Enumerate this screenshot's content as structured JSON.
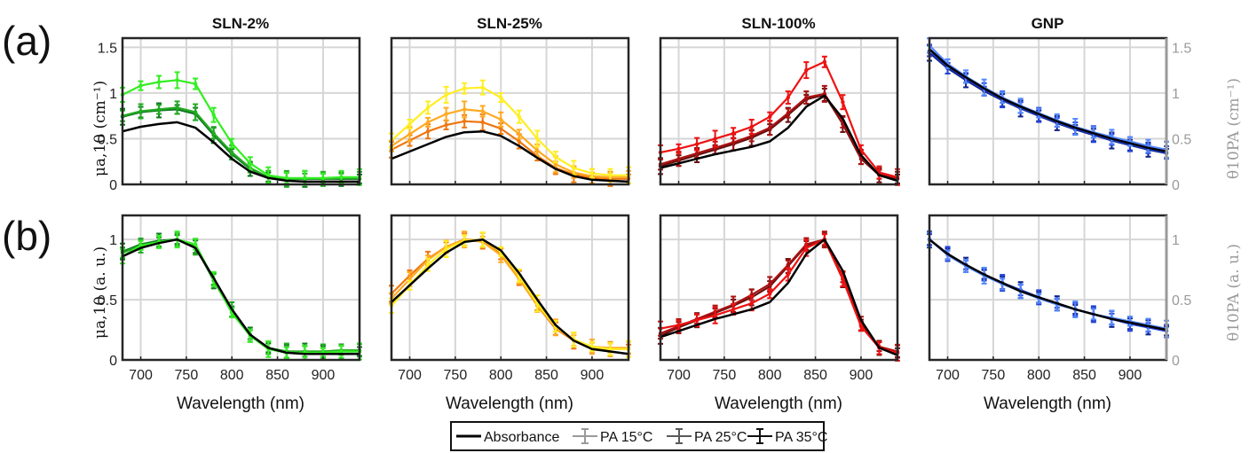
{
  "figure": {
    "row_labels": [
      "(a)",
      "(b)"
    ],
    "column_titles": [
      "SLN-2%",
      "SLN-25%",
      "SLN-100%",
      "GNP"
    ],
    "xlabel": "Wavelength (nm)",
    "ylabel_left_a": "μa,10 (cm⁻¹)",
    "ylabel_left_b": "μa,10 (a. u.)",
    "ylabel_right_a": "θ10PA (cm⁻¹)",
    "ylabel_right_b": "θ10PA (a. u.)",
    "legend": [
      "Absorbance",
      "PA 15°C",
      "PA 25°C",
      "PA 35°C"
    ]
  },
  "chart_data": [
    {
      "type": "line",
      "title": "SLN-2%",
      "row": "(a)",
      "xlabel": "",
      "ylabel": "μa,10 (cm⁻¹)",
      "xlim": [
        680,
        940
      ],
      "ylim": [
        0,
        1.6
      ],
      "x": [
        680,
        700,
        720,
        740,
        760,
        780,
        800,
        820,
        840,
        860,
        880,
        900,
        920,
        940
      ],
      "colors": {
        "Absorbance": "#000000",
        "PA 15°C": "#33ee22",
        "PA 25°C": "#22aa22",
        "PA 35°C": "#117722"
      },
      "series": [
        {
          "name": "Absorbance",
          "values": [
            0.58,
            0.63,
            0.66,
            0.68,
            0.62,
            0.46,
            0.28,
            0.14,
            0.07,
            0.04,
            0.03,
            0.03,
            0.03,
            0.03
          ]
        },
        {
          "name": "PA 15°C",
          "values": [
            0.98,
            1.08,
            1.12,
            1.14,
            1.1,
            0.76,
            0.45,
            0.23,
            0.1,
            0.07,
            0.07,
            0.07,
            0.08,
            0.08
          ]
        },
        {
          "name": "PA 25°C",
          "values": [
            0.75,
            0.8,
            0.82,
            0.84,
            0.79,
            0.56,
            0.35,
            0.18,
            0.08,
            0.06,
            0.06,
            0.06,
            0.07,
            0.07
          ]
        },
        {
          "name": "PA 35°C",
          "values": [
            0.74,
            0.79,
            0.81,
            0.82,
            0.77,
            0.54,
            0.33,
            0.17,
            0.08,
            0.06,
            0.06,
            0.06,
            0.06,
            0.06
          ]
        }
      ]
    },
    {
      "type": "line",
      "title": "SLN-25%",
      "row": "(a)",
      "xlim": [
        680,
        940
      ],
      "ylim": [
        0,
        1.6
      ],
      "x": [
        680,
        700,
        720,
        740,
        760,
        780,
        800,
        820,
        840,
        860,
        880,
        900,
        920,
        940
      ],
      "colors": {
        "Absorbance": "#000000",
        "PA 15°C": "#ffee22",
        "PA 25°C": "#ffaa22",
        "PA 35°C": "#ee7711"
      },
      "series": [
        {
          "name": "Absorbance",
          "values": [
            0.28,
            0.36,
            0.44,
            0.52,
            0.57,
            0.58,
            0.53,
            0.42,
            0.29,
            0.17,
            0.09,
            0.05,
            0.04,
            0.03
          ]
        },
        {
          "name": "PA 15°C",
          "values": [
            0.48,
            0.66,
            0.84,
            0.98,
            1.05,
            1.06,
            0.95,
            0.74,
            0.5,
            0.3,
            0.18,
            0.12,
            0.1,
            0.1
          ]
        },
        {
          "name": "PA 25°C",
          "values": [
            0.42,
            0.55,
            0.68,
            0.77,
            0.82,
            0.8,
            0.71,
            0.55,
            0.37,
            0.22,
            0.13,
            0.09,
            0.08,
            0.08
          ]
        },
        {
          "name": "PA 35°C",
          "values": [
            0.38,
            0.48,
            0.58,
            0.65,
            0.69,
            0.68,
            0.61,
            0.47,
            0.31,
            0.18,
            0.11,
            0.07,
            0.06,
            0.06
          ]
        }
      ]
    },
    {
      "type": "line",
      "title": "SLN-100%",
      "row": "(a)",
      "xlim": [
        680,
        940
      ],
      "ylim": [
        0,
        1.6
      ],
      "x": [
        680,
        700,
        720,
        740,
        760,
        780,
        800,
        820,
        840,
        860,
        880,
        900,
        920,
        940
      ],
      "colors": {
        "Absorbance": "#000000",
        "PA 15°C": "#ee1111",
        "PA 25°C": "#aa1111",
        "PA 35°C": "#661111"
      },
      "series": [
        {
          "name": "Absorbance",
          "values": [
            0.18,
            0.23,
            0.28,
            0.33,
            0.37,
            0.41,
            0.47,
            0.62,
            0.85,
            0.97,
            0.72,
            0.32,
            0.1,
            0.04
          ]
        },
        {
          "name": "PA 15°C",
          "values": [
            0.35,
            0.39,
            0.44,
            0.5,
            0.56,
            0.63,
            0.74,
            0.95,
            1.25,
            1.34,
            0.9,
            0.38,
            0.13,
            0.08
          ]
        },
        {
          "name": "PA 25°C",
          "values": [
            0.22,
            0.28,
            0.34,
            0.4,
            0.46,
            0.53,
            0.62,
            0.78,
            0.95,
            0.99,
            0.68,
            0.3,
            0.11,
            0.07
          ]
        },
        {
          "name": "PA 35°C",
          "values": [
            0.2,
            0.26,
            0.32,
            0.38,
            0.44,
            0.51,
            0.6,
            0.76,
            0.93,
            0.98,
            0.66,
            0.28,
            0.1,
            0.06
          ]
        }
      ]
    },
    {
      "type": "line",
      "title": "GNP",
      "row": "(a)",
      "xlim": [
        680,
        940
      ],
      "ylim": [
        0,
        1.6
      ],
      "x": [
        680,
        700,
        720,
        740,
        760,
        780,
        800,
        820,
        840,
        860,
        880,
        900,
        920,
        940
      ],
      "colors": {
        "Absorbance": "#000000",
        "PA 15°C": "#5588ff",
        "PA 25°C": "#2244dd",
        "PA 35°C": "#112288"
      },
      "series": [
        {
          "name": "Absorbance",
          "values": [
            1.48,
            1.3,
            1.17,
            1.05,
            0.94,
            0.85,
            0.77,
            0.69,
            0.62,
            0.56,
            0.5,
            0.45,
            0.4,
            0.36
          ]
        },
        {
          "name": "PA 15°C",
          "values": [
            1.52,
            1.32,
            1.18,
            1.06,
            0.95,
            0.86,
            0.78,
            0.7,
            0.63,
            0.57,
            0.52,
            0.47,
            0.42,
            0.38
          ]
        },
        {
          "name": "PA 25°C",
          "values": [
            1.46,
            1.29,
            1.16,
            1.04,
            0.93,
            0.84,
            0.76,
            0.68,
            0.61,
            0.55,
            0.49,
            0.44,
            0.39,
            0.35
          ]
        },
        {
          "name": "PA 35°C",
          "values": [
            1.44,
            1.27,
            1.14,
            1.02,
            0.92,
            0.83,
            0.75,
            0.67,
            0.6,
            0.54,
            0.48,
            0.43,
            0.38,
            0.34
          ]
        }
      ]
    },
    {
      "type": "line",
      "title": "SLN-2%",
      "row": "(b)",
      "xlabel": "Wavelength (nm)",
      "ylabel": "μa,10 (a. u.)",
      "xlim": [
        680,
        940
      ],
      "ylim": [
        0,
        1.2
      ],
      "x": [
        680,
        700,
        720,
        740,
        760,
        780,
        800,
        820,
        840,
        860,
        880,
        900,
        920,
        940
      ],
      "colors": {
        "Absorbance": "#000000",
        "PA 15°C": "#33ee22",
        "PA 25°C": "#22aa22",
        "PA 35°C": "#117722"
      },
      "series": [
        {
          "name": "Absorbance",
          "values": [
            0.86,
            0.93,
            0.97,
            1.0,
            0.93,
            0.68,
            0.42,
            0.21,
            0.1,
            0.06,
            0.05,
            0.05,
            0.05,
            0.05
          ]
        },
        {
          "name": "PA 15°C",
          "values": [
            0.86,
            0.95,
            0.98,
            1.0,
            0.96,
            0.67,
            0.39,
            0.2,
            0.09,
            0.06,
            0.06,
            0.06,
            0.07,
            0.07
          ]
        },
        {
          "name": "PA 25°C",
          "values": [
            0.89,
            0.95,
            0.98,
            1.0,
            0.94,
            0.67,
            0.42,
            0.21,
            0.1,
            0.07,
            0.07,
            0.07,
            0.08,
            0.08
          ]
        },
        {
          "name": "PA 35°C",
          "values": [
            0.9,
            0.96,
            0.99,
            1.0,
            0.94,
            0.66,
            0.4,
            0.21,
            0.1,
            0.07,
            0.07,
            0.07,
            0.07,
            0.07
          ]
        }
      ]
    },
    {
      "type": "line",
      "title": "SLN-25%",
      "row": "(b)",
      "xlabel": "Wavelength (nm)",
      "xlim": [
        680,
        940
      ],
      "ylim": [
        0,
        1.2
      ],
      "x": [
        680,
        700,
        720,
        740,
        760,
        780,
        800,
        820,
        840,
        860,
        880,
        900,
        920,
        940
      ],
      "colors": {
        "Absorbance": "#000000",
        "PA 15°C": "#ffee22",
        "PA 25°C": "#ffaa22",
        "PA 35°C": "#ee7711"
      },
      "series": [
        {
          "name": "Absorbance",
          "values": [
            0.48,
            0.62,
            0.76,
            0.89,
            0.98,
            1.0,
            0.91,
            0.72,
            0.5,
            0.29,
            0.16,
            0.09,
            0.07,
            0.05
          ]
        },
        {
          "name": "PA 15°C",
          "values": [
            0.45,
            0.62,
            0.79,
            0.92,
            0.99,
            1.0,
            0.9,
            0.7,
            0.47,
            0.28,
            0.17,
            0.11,
            0.09,
            0.09
          ]
        },
        {
          "name": "PA 25°C",
          "values": [
            0.51,
            0.67,
            0.83,
            0.94,
            1.0,
            0.98,
            0.87,
            0.67,
            0.45,
            0.27,
            0.16,
            0.11,
            0.1,
            0.1
          ]
        },
        {
          "name": "PA 35°C",
          "values": [
            0.55,
            0.7,
            0.84,
            0.94,
            1.0,
            0.99,
            0.88,
            0.68,
            0.45,
            0.26,
            0.16,
            0.1,
            0.09,
            0.09
          ]
        }
      ]
    },
    {
      "type": "line",
      "title": "SLN-100%",
      "row": "(b)",
      "xlabel": "Wavelength (nm)",
      "xlim": [
        680,
        940
      ],
      "ylim": [
        0,
        1.2
      ],
      "x": [
        680,
        700,
        720,
        740,
        760,
        780,
        800,
        820,
        840,
        860,
        880,
        900,
        920,
        940
      ],
      "colors": {
        "Absorbance": "#000000",
        "PA 15°C": "#ee1111",
        "PA 25°C": "#aa1111",
        "PA 35°C": "#661111"
      },
      "series": [
        {
          "name": "Absorbance",
          "values": [
            0.19,
            0.24,
            0.29,
            0.34,
            0.38,
            0.42,
            0.48,
            0.64,
            0.88,
            1.0,
            0.74,
            0.33,
            0.1,
            0.04
          ]
        },
        {
          "name": "PA 15°C",
          "values": [
            0.26,
            0.29,
            0.33,
            0.37,
            0.42,
            0.47,
            0.55,
            0.71,
            0.93,
            1.0,
            0.67,
            0.28,
            0.1,
            0.06
          ]
        },
        {
          "name": "PA 25°C",
          "values": [
            0.22,
            0.28,
            0.34,
            0.4,
            0.46,
            0.54,
            0.63,
            0.79,
            0.96,
            1.0,
            0.69,
            0.3,
            0.11,
            0.07
          ]
        },
        {
          "name": "PA 35°C",
          "values": [
            0.2,
            0.27,
            0.33,
            0.39,
            0.45,
            0.52,
            0.61,
            0.78,
            0.95,
            1.0,
            0.67,
            0.29,
            0.1,
            0.06
          ]
        }
      ]
    },
    {
      "type": "line",
      "title": "GNP",
      "row": "(b)",
      "xlabel": "Wavelength (nm)",
      "ylabel_right": "θ10PA (a. u.)",
      "xlim": [
        680,
        940
      ],
      "ylim": [
        0,
        1.2
      ],
      "x": [
        680,
        700,
        720,
        740,
        760,
        780,
        800,
        820,
        840,
        860,
        880,
        900,
        920,
        940
      ],
      "colors": {
        "Absorbance": "#000000",
        "PA 15°C": "#5588ff",
        "PA 25°C": "#2244dd",
        "PA 35°C": "#112288"
      },
      "series": [
        {
          "name": "Absorbance",
          "values": [
            1.0,
            0.88,
            0.79,
            0.71,
            0.64,
            0.57,
            0.52,
            0.47,
            0.42,
            0.38,
            0.34,
            0.31,
            0.28,
            0.25
          ]
        },
        {
          "name": "PA 15°C",
          "values": [
            1.0,
            0.87,
            0.78,
            0.7,
            0.63,
            0.57,
            0.51,
            0.46,
            0.42,
            0.38,
            0.35,
            0.32,
            0.29,
            0.26
          ]
        },
        {
          "name": "PA 25°C",
          "values": [
            1.0,
            0.88,
            0.79,
            0.71,
            0.64,
            0.58,
            0.52,
            0.47,
            0.42,
            0.38,
            0.34,
            0.3,
            0.27,
            0.24
          ]
        },
        {
          "name": "PA 35°C",
          "values": [
            1.0,
            0.88,
            0.79,
            0.71,
            0.64,
            0.58,
            0.52,
            0.47,
            0.42,
            0.38,
            0.34,
            0.3,
            0.27,
            0.24
          ]
        }
      ]
    }
  ],
  "axes": {
    "xticks": [
      700,
      750,
      800,
      850,
      900
    ],
    "yticks_a": [
      0,
      0.5,
      1,
      1.5
    ],
    "yticks_a_labels": [
      "0",
      "0.5",
      "1",
      "1.5"
    ],
    "yticks_b": [
      0,
      0.5,
      1
    ],
    "yticks_b_labels": [
      "0",
      "0.5",
      "1"
    ],
    "grid": true
  }
}
